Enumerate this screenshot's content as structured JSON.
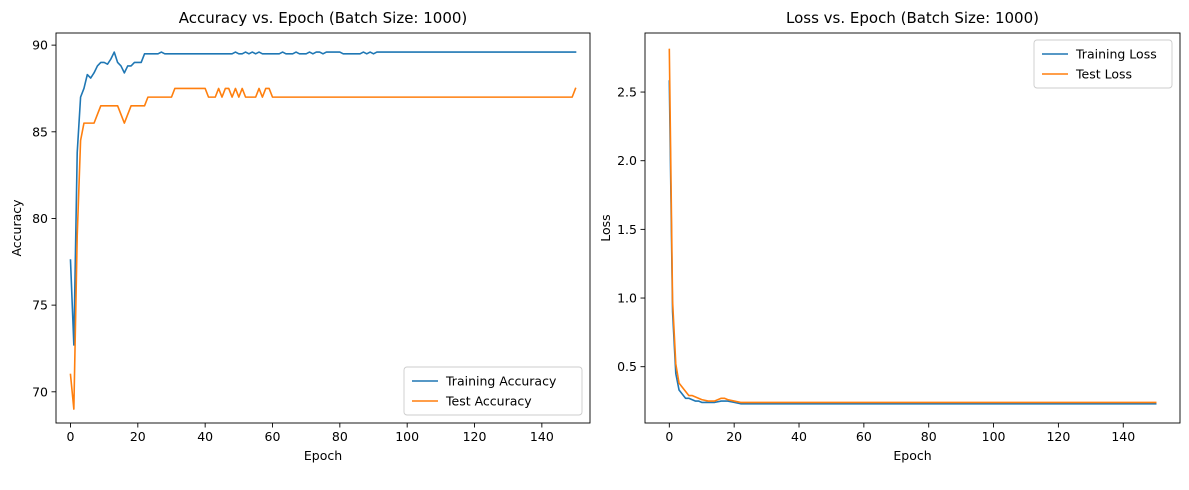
{
  "chart_data": [
    {
      "type": "line",
      "title": "Accuracy vs. Epoch (Batch Size: 1000)",
      "xlabel": "Epoch",
      "ylabel": "Accuracy",
      "xlim": [
        -4.3,
        154.3
      ],
      "ylim": [
        68.2,
        90.7
      ],
      "xticks": [
        0,
        20,
        40,
        60,
        80,
        100,
        120,
        140
      ],
      "yticks": [
        70,
        75,
        80,
        85,
        90
      ],
      "grid": false,
      "legend_position": "bottom-right",
      "series": [
        {
          "name": "Training Accuracy",
          "color": "#1f77b4",
          "points": [
            [
              0,
              77.6
            ],
            [
              1,
              72.7
            ],
            [
              2,
              83.8
            ],
            [
              3,
              87.0
            ],
            [
              4,
              87.5
            ],
            [
              5,
              88.3
            ],
            [
              6,
              88.1
            ],
            [
              7,
              88.4
            ],
            [
              8,
              88.8
            ],
            [
              9,
              89.0
            ],
            [
              10,
              89.0
            ],
            [
              11,
              88.9
            ],
            [
              12,
              89.2
            ],
            [
              13,
              89.6
            ],
            [
              14,
              89.0
            ],
            [
              15,
              88.8
            ],
            [
              16,
              88.4
            ],
            [
              17,
              88.8
            ],
            [
              18,
              88.8
            ],
            [
              19,
              89.0
            ],
            [
              20,
              89.0
            ],
            [
              21,
              89.0
            ],
            [
              22,
              89.5
            ],
            [
              23,
              89.5
            ],
            [
              24,
              89.5
            ],
            [
              25,
              89.5
            ],
            [
              26,
              89.5
            ],
            [
              27,
              89.6
            ],
            [
              28,
              89.5
            ],
            [
              30,
              89.5
            ],
            [
              40,
              89.5
            ],
            [
              48,
              89.5
            ],
            [
              49,
              89.6
            ],
            [
              50,
              89.5
            ],
            [
              51,
              89.5
            ],
            [
              52,
              89.6
            ],
            [
              53,
              89.5
            ],
            [
              54,
              89.6
            ],
            [
              55,
              89.5
            ],
            [
              56,
              89.6
            ],
            [
              57,
              89.5
            ],
            [
              62,
              89.5
            ],
            [
              63,
              89.6
            ],
            [
              64,
              89.5
            ],
            [
              66,
              89.5
            ],
            [
              67,
              89.6
            ],
            [
              68,
              89.5
            ],
            [
              70,
              89.5
            ],
            [
              71,
              89.6
            ],
            [
              72,
              89.5
            ],
            [
              73,
              89.6
            ],
            [
              74,
              89.6
            ],
            [
              75,
              89.5
            ],
            [
              76,
              89.6
            ],
            [
              80,
              89.6
            ],
            [
              81,
              89.5
            ],
            [
              86,
              89.5
            ],
            [
              87,
              89.6
            ],
            [
              88,
              89.5
            ],
            [
              89,
              89.6
            ],
            [
              90,
              89.5
            ],
            [
              91,
              89.6
            ],
            [
              150,
              89.6
            ]
          ]
        },
        {
          "name": "Test Accuracy",
          "color": "#ff7f0e",
          "points": [
            [
              0,
              71.0
            ],
            [
              1,
              69.0
            ],
            [
              2,
              79.0
            ],
            [
              3,
              84.5
            ],
            [
              4,
              85.5
            ],
            [
              5,
              85.5
            ],
            [
              6,
              85.5
            ],
            [
              7,
              85.5
            ],
            [
              8,
              86.0
            ],
            [
              9,
              86.5
            ],
            [
              10,
              86.5
            ],
            [
              11,
              86.5
            ],
            [
              12,
              86.5
            ],
            [
              13,
              86.5
            ],
            [
              14,
              86.5
            ],
            [
              15,
              86.0
            ],
            [
              16,
              85.5
            ],
            [
              17,
              86.0
            ],
            [
              18,
              86.5
            ],
            [
              19,
              86.5
            ],
            [
              20,
              86.5
            ],
            [
              21,
              86.5
            ],
            [
              22,
              86.5
            ],
            [
              23,
              87.0
            ],
            [
              24,
              87.0
            ],
            [
              29,
              87.0
            ],
            [
              30,
              87.0
            ],
            [
              31,
              87.5
            ],
            [
              40,
              87.5
            ],
            [
              41,
              87.0
            ],
            [
              42,
              87.0
            ],
            [
              43,
              87.0
            ],
            [
              44,
              87.5
            ],
            [
              45,
              87.0
            ],
            [
              46,
              87.5
            ],
            [
              47,
              87.5
            ],
            [
              48,
              87.0
            ],
            [
              49,
              87.5
            ],
            [
              50,
              87.0
            ],
            [
              51,
              87.5
            ],
            [
              52,
              87.0
            ],
            [
              53,
              87.0
            ],
            [
              54,
              87.0
            ],
            [
              55,
              87.0
            ],
            [
              56,
              87.5
            ],
            [
              57,
              87.0
            ],
            [
              58,
              87.5
            ],
            [
              59,
              87.5
            ],
            [
              60,
              87.0
            ],
            [
              65,
              87.0
            ],
            [
              100,
              87.0
            ],
            [
              149,
              87.0
            ],
            [
              150,
              87.5
            ]
          ]
        }
      ]
    },
    {
      "type": "line",
      "title": "Loss vs. Epoch (Batch Size: 1000)",
      "xlabel": "Epoch",
      "ylabel": "Loss",
      "xlim": [
        -7.5,
        157.5
      ],
      "ylim": [
        0.09,
        2.93
      ],
      "xticks": [
        0,
        20,
        40,
        60,
        80,
        100,
        120,
        140
      ],
      "yticks": [
        0.5,
        1.0,
        1.5,
        2.0,
        2.5
      ],
      "yticklabels": [
        "0.5",
        "1.0",
        "1.5",
        "2.0",
        "2.5"
      ],
      "grid": false,
      "legend_position": "top-right",
      "series": [
        {
          "name": "Training Loss",
          "color": "#1f77b4",
          "points": [
            [
              0,
              2.58
            ],
            [
              1,
              0.9
            ],
            [
              2,
              0.45
            ],
            [
              3,
              0.33
            ],
            [
              4,
              0.3
            ],
            [
              5,
              0.27
            ],
            [
              6,
              0.27
            ],
            [
              7,
              0.26
            ],
            [
              8,
              0.25
            ],
            [
              9,
              0.25
            ],
            [
              10,
              0.24
            ],
            [
              12,
              0.24
            ],
            [
              14,
              0.24
            ],
            [
              16,
              0.25
            ],
            [
              18,
              0.25
            ],
            [
              20,
              0.24
            ],
            [
              22,
              0.23
            ],
            [
              30,
              0.23
            ],
            [
              60,
              0.23
            ],
            [
              100,
              0.23
            ],
            [
              150,
              0.23
            ]
          ]
        },
        {
          "name": "Test Loss",
          "color": "#ff7f0e",
          "points": [
            [
              0,
              2.81
            ],
            [
              1,
              0.98
            ],
            [
              2,
              0.52
            ],
            [
              3,
              0.38
            ],
            [
              4,
              0.35
            ],
            [
              5,
              0.32
            ],
            [
              6,
              0.29
            ],
            [
              7,
              0.29
            ],
            [
              8,
              0.28
            ],
            [
              9,
              0.27
            ],
            [
              10,
              0.26
            ],
            [
              12,
              0.25
            ],
            [
              14,
              0.25
            ],
            [
              15,
              0.26
            ],
            [
              16,
              0.27
            ],
            [
              17,
              0.27
            ],
            [
              18,
              0.26
            ],
            [
              20,
              0.25
            ],
            [
              22,
              0.24
            ],
            [
              30,
              0.24
            ],
            [
              60,
              0.24
            ],
            [
              100,
              0.24
            ],
            [
              150,
              0.24
            ]
          ]
        }
      ]
    }
  ]
}
